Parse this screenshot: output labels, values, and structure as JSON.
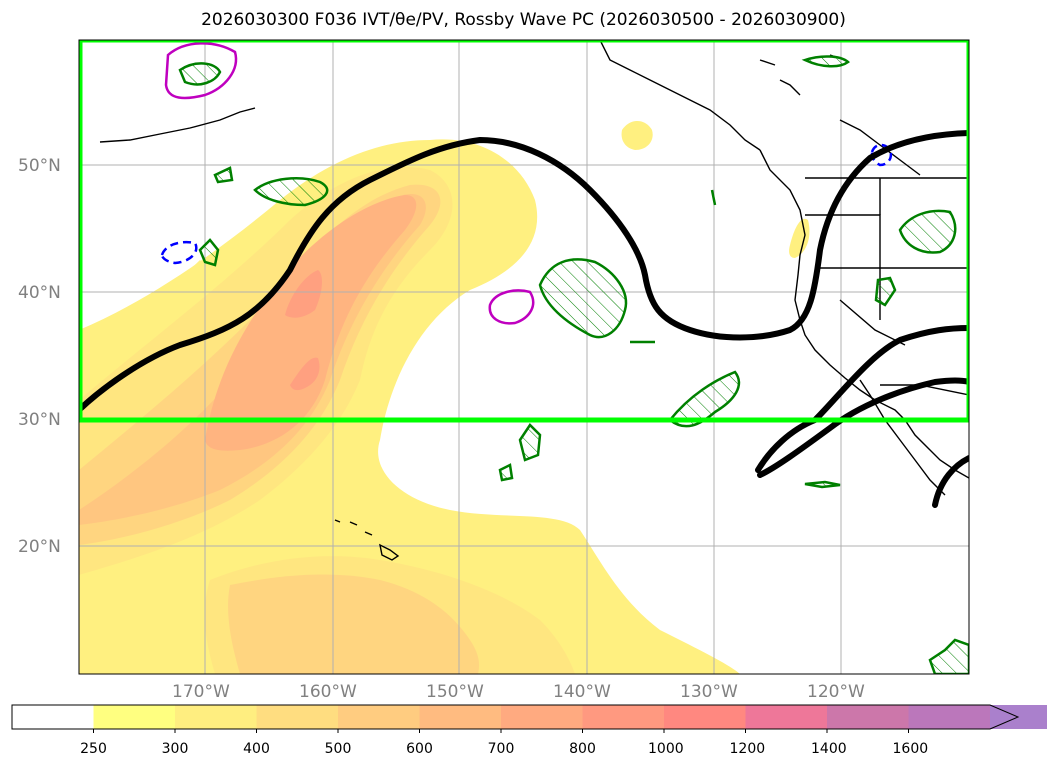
{
  "title": "2026030300 F036 IVT/θe/PV, Rossby Wave PC (2026030500 - 2026030900)",
  "lat_labels": [
    "50°N",
    "40°N",
    "30°N",
    "20°N"
  ],
  "lon_labels": [
    "170°W",
    "160°W",
    "150°W",
    "140°W",
    "130°W",
    "120°W"
  ],
  "colorbar": {
    "levels": [
      "250",
      "300",
      "400",
      "500",
      "600",
      "700",
      "800",
      "1000",
      "1200",
      "1400",
      "1600"
    ],
    "colors": [
      "#ffff80",
      "#ffee80",
      "#ffdd80",
      "#ffcc80",
      "#ffbb80",
      "#ffaa80",
      "#ff9980",
      "#ff8880",
      "#ee7799",
      "#cc77aa",
      "#bb77bb",
      "#aa80cc"
    ],
    "extend": "max"
  },
  "colors": {
    "box": "#00ff00",
    "rossby_contour": "#000000",
    "pv_contour": "#008000",
    "theta_high": "#bf00bf",
    "theta_low": "#0000ff"
  }
}
